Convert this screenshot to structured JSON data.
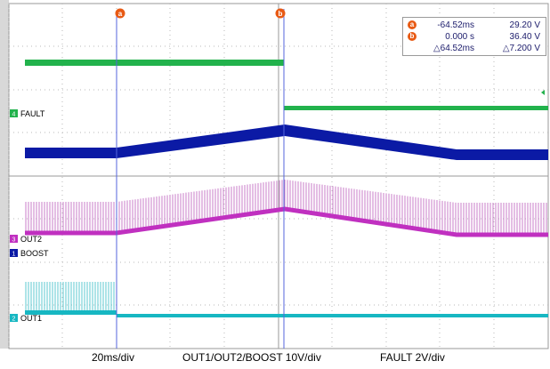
{
  "channels": [
    {
      "id": "fault",
      "badge": "4",
      "label": "FAULT",
      "color": "#22b24c"
    },
    {
      "id": "boost",
      "badge": "1",
      "label": "BOOST",
      "color": "#0b1aa5"
    },
    {
      "id": "out2",
      "badge": "3",
      "label": "OUT2",
      "color": "#c030c0"
    },
    {
      "id": "out1",
      "badge": "2",
      "label": "OUT1",
      "color": "#17b7c2"
    }
  ],
  "cursors": {
    "a_label": "a",
    "b_label": "b",
    "rows": [
      {
        "marker": "a",
        "time": "-64.52ms",
        "value": "29.20 V"
      },
      {
        "marker": "b",
        "time": "0.000 s",
        "value": "36.40 V"
      },
      {
        "marker": "",
        "time": "△64.52ms",
        "value": "△7.200 V"
      }
    ]
  },
  "footer": {
    "timebase": "20ms/div",
    "voltage_scale": "OUT1/OUT2/BOOST 10V/div",
    "fault_scale": "FAULT 2V/div"
  },
  "colors": {
    "cursor": "#5566dd",
    "accent": "#e85a14",
    "grid": "#b8b8b8"
  }
}
